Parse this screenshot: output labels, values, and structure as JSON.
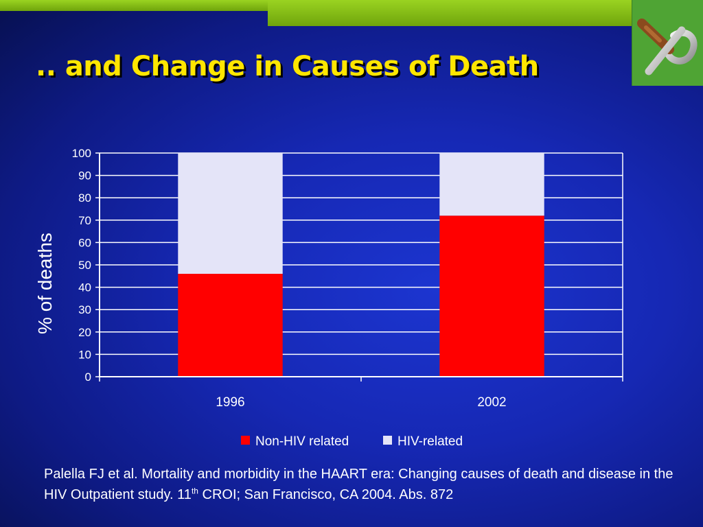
{
  "slide": {
    "title": ".. and Change in Causes of Death",
    "citation": {
      "before_sup": "Palella FJ et al. Mortality and morbidity in the HAART era: Changing causes of death and disease in  the HIV Outpatient study. 11",
      "sup": "th",
      "after_sup": " CROI; San Francisco, CA 2004. Abs. 872"
    },
    "logo_icon": "no-smoking-icon",
    "colors": {
      "band": "#8cc41a",
      "logo_bg": "#4fa434",
      "title": "#ffe600"
    }
  },
  "chart_data": {
    "type": "bar",
    "stacked": true,
    "categories": [
      "1996",
      "2002"
    ],
    "series": [
      {
        "name": "Non-HIV related",
        "values": [
          46,
          72
        ],
        "color": "#ff0000"
      },
      {
        "name": "HIV-related",
        "values": [
          54,
          28
        ],
        "color": "#e4e4f8"
      }
    ],
    "ylabel": "% of deaths",
    "ylim": [
      0,
      100
    ],
    "yticks": [
      0,
      10,
      20,
      30,
      40,
      50,
      60,
      70,
      80,
      90,
      100
    ],
    "grid": true,
    "legend": "bottom"
  }
}
